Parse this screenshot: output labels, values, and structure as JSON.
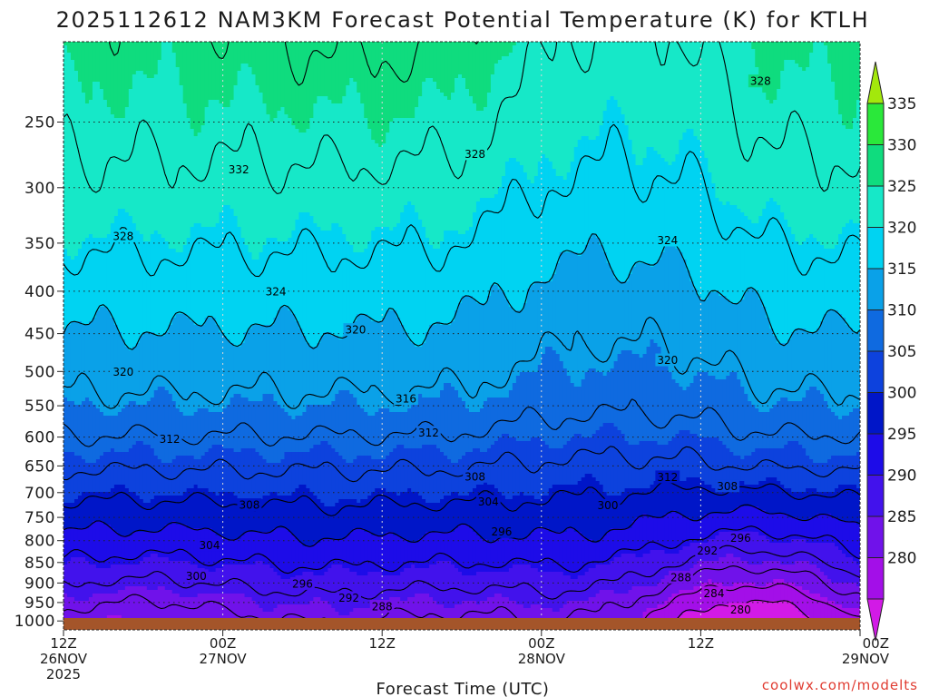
{
  "chart_data": {
    "type": "area",
    "title": "2025112612 NAM3KM Forecast Potential Temperature (K) for KTLH",
    "xlabel": "Forecast Time (UTC)",
    "ylabel": "",
    "x_ticks": [
      {
        "lines": [
          "12Z",
          "26NOV",
          "2025"
        ],
        "hour": 0
      },
      {
        "lines": [
          "00Z",
          "27NOV"
        ],
        "hour": 12
      },
      {
        "lines": [
          "12Z"
        ],
        "hour": 24
      },
      {
        "lines": [
          "00Z",
          "28NOV"
        ],
        "hour": 36
      },
      {
        "lines": [
          "12Z"
        ],
        "hour": 48
      },
      {
        "lines": [
          "00Z",
          "29NOV"
        ],
        "hour": 60
      }
    ],
    "x_range_hours": [
      0,
      60
    ],
    "y_ticks": [
      250,
      300,
      350,
      400,
      450,
      500,
      550,
      600,
      650,
      700,
      750,
      800,
      850,
      900,
      950,
      1000
    ],
    "y_range_hPa": [
      1025,
      200
    ],
    "y_scale": "log-pressure",
    "grid": "dotted",
    "colorbar": {
      "labels": [
        "335",
        "330",
        "325",
        "320",
        "315",
        "310",
        "305",
        "300",
        "295",
        "290",
        "285",
        "280"
      ],
      "levels": [
        275,
        280,
        285,
        290,
        295,
        300,
        305,
        310,
        315,
        320,
        325,
        330,
        335,
        340
      ],
      "colors": [
        "#d21ae6",
        "#a30fe8",
        "#7012ea",
        "#4212ec",
        "#1d0ce8",
        "#0016c8",
        "#0d42dd",
        "#0f6ae0",
        "#0aa1e8",
        "#00d3f2",
        "#16e8c8",
        "#0fdc7e",
        "#2ae83a",
        "#a3e80c"
      ],
      "placement": "right"
    },
    "contour_interval": 4,
    "contour_labels": [
      {
        "text": "332",
        "hour": 13.2,
        "hPa": 285
      },
      {
        "text": "328",
        "hour": 4.5,
        "hPa": 343
      },
      {
        "text": "328",
        "hour": 31,
        "hPa": 273
      },
      {
        "text": "328",
        "hour": 52.5,
        "hPa": 223
      },
      {
        "text": "324",
        "hour": 16,
        "hPa": 400
      },
      {
        "text": "324",
        "hour": 45.5,
        "hPa": 347
      },
      {
        "text": "320",
        "hour": 22,
        "hPa": 445
      },
      {
        "text": "320",
        "hour": 4.5,
        "hPa": 500
      },
      {
        "text": "320",
        "hour": 45.5,
        "hPa": 484
      },
      {
        "text": "316",
        "hour": 25.8,
        "hPa": 539
      },
      {
        "text": "312",
        "hour": 8,
        "hPa": 603
      },
      {
        "text": "312",
        "hour": 27.5,
        "hPa": 592
      },
      {
        "text": "312",
        "hour": 45.5,
        "hPa": 670
      },
      {
        "text": "308",
        "hour": 31,
        "hPa": 669
      },
      {
        "text": "308",
        "hour": 50,
        "hPa": 687
      },
      {
        "text": "308",
        "hour": 14,
        "hPa": 724
      },
      {
        "text": "304",
        "hour": 32,
        "hPa": 717
      },
      {
        "text": "304",
        "hour": 11,
        "hPa": 810
      },
      {
        "text": "300",
        "hour": 41,
        "hPa": 725
      },
      {
        "text": "300",
        "hour": 10,
        "hPa": 882
      },
      {
        "text": "296",
        "hour": 33,
        "hPa": 780
      },
      {
        "text": "296",
        "hour": 51,
        "hPa": 794
      },
      {
        "text": "296",
        "hour": 18,
        "hPa": 901
      },
      {
        "text": "292",
        "hour": 48.5,
        "hPa": 822
      },
      {
        "text": "292",
        "hour": 21.5,
        "hPa": 937
      },
      {
        "text": "288",
        "hour": 24,
        "hPa": 960
      },
      {
        "text": "288",
        "hour": 46.5,
        "hPa": 885
      },
      {
        "text": "284",
        "hour": 49,
        "hPa": 925
      },
      {
        "text": "280",
        "hour": 51,
        "hPa": 968
      }
    ],
    "surface_band": {
      "color": "#a4552a"
    }
  },
  "credit": "coolwx.com/modelts"
}
